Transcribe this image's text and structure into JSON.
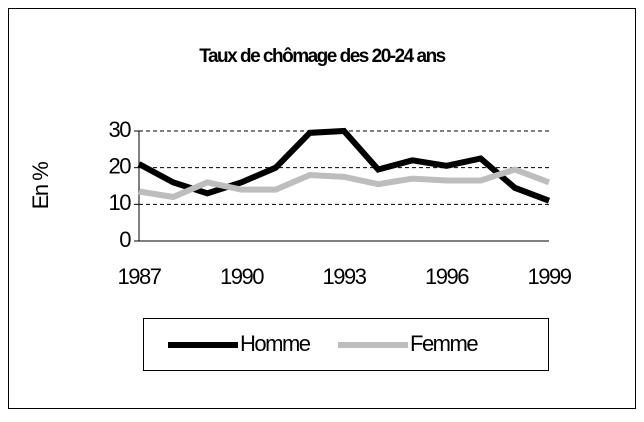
{
  "chart_data": {
    "type": "line",
    "title": "Taux de chômage des 20-24 ans",
    "y_label": "En %",
    "x": [
      1987,
      1988,
      1989,
      1990,
      1991,
      1992,
      1993,
      1994,
      1995,
      1996,
      1997,
      1998,
      1999
    ],
    "series": [
      {
        "name": "Homme",
        "color": "#000000",
        "values": [
          21,
          16,
          13,
          16,
          20,
          29.5,
          30,
          19.5,
          22,
          20.5,
          22.5,
          14.5,
          11
        ]
      },
      {
        "name": "Femme",
        "color": "#bdbdbd",
        "values": [
          13.5,
          12,
          16,
          14,
          14,
          18,
          17.5,
          15.5,
          17,
          16.5,
          16.5,
          19.5,
          16
        ]
      }
    ],
    "xlim": [
      1987,
      1999
    ],
    "xticks": [
      1987,
      1990,
      1993,
      1996,
      1999
    ],
    "ylim": [
      0,
      30
    ],
    "yticks": [
      0,
      10,
      20,
      30
    ],
    "grid": true,
    "legend": "bottom"
  }
}
